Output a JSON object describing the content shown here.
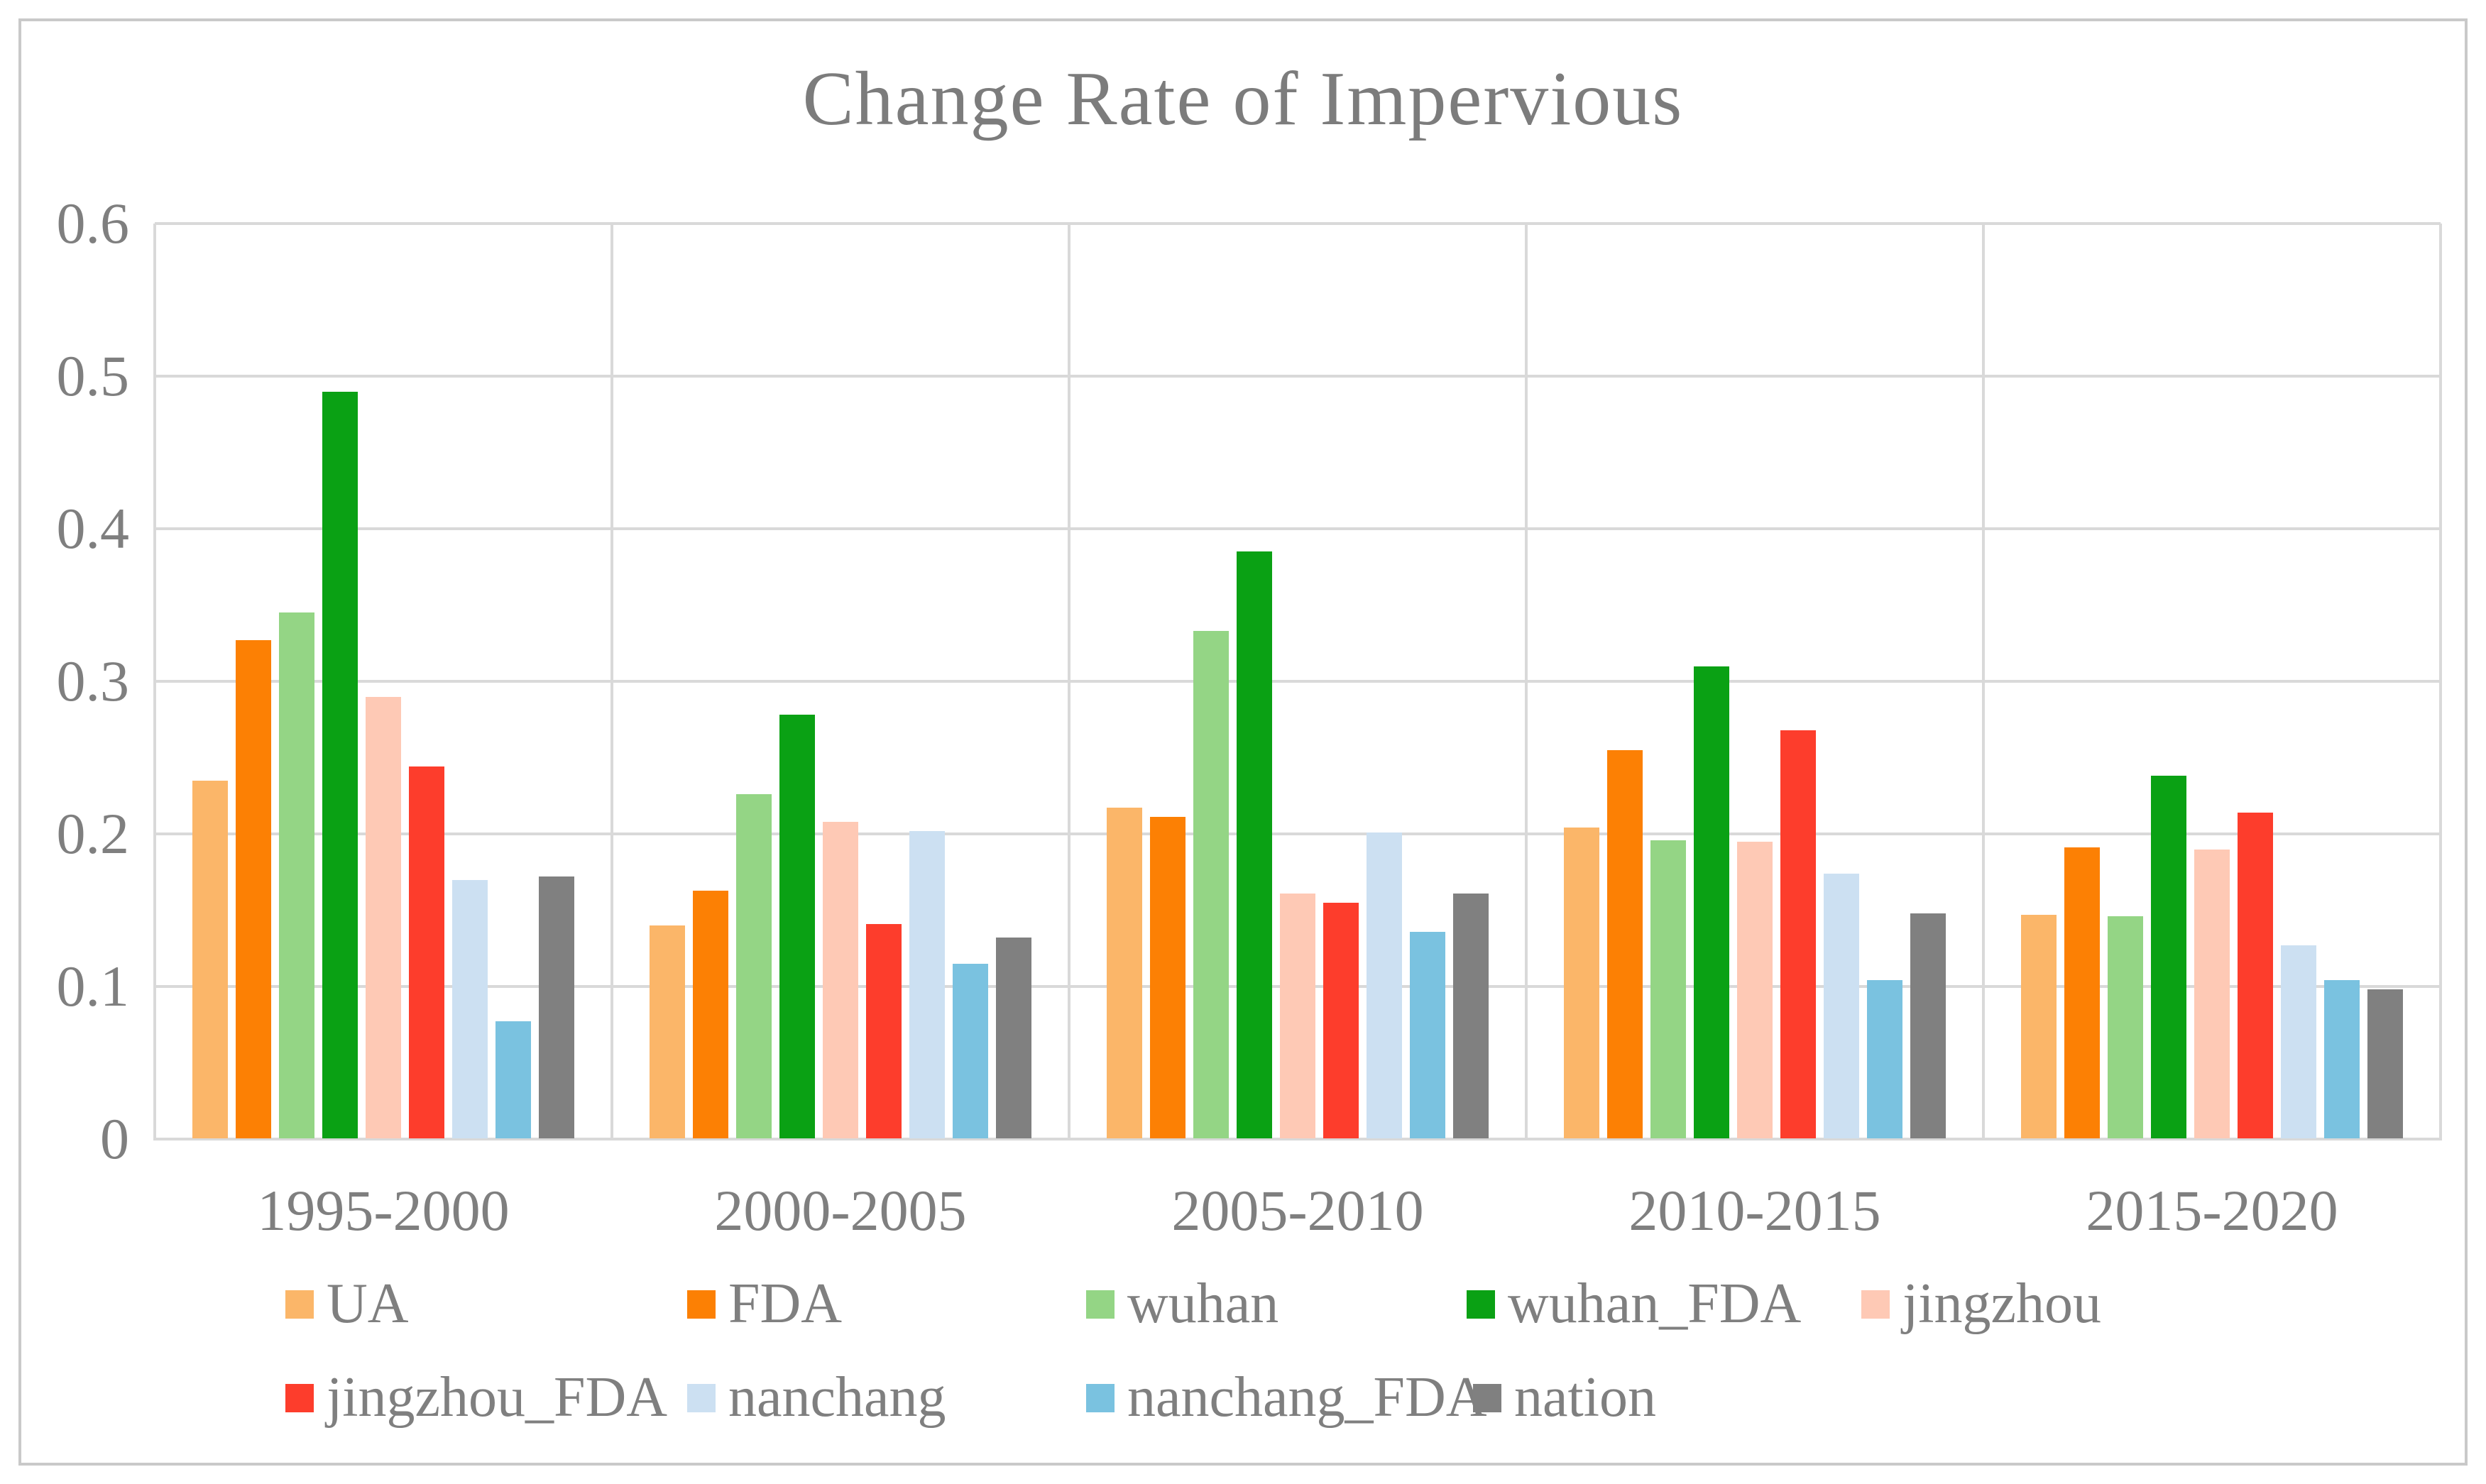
{
  "chart_data": {
    "type": "bar",
    "title": "Change Rate of Impervious",
    "xlabel": "",
    "ylabel": "",
    "ylim": [
      0,
      0.6
    ],
    "ytick_step": 0.1,
    "yticks": [
      "0",
      "0.1",
      "0.2",
      "0.3",
      "0.4",
      "0.5",
      "0.6"
    ],
    "grid": "horizontal gridlines each 0.1 plus vertical category separators",
    "legend_position": "bottom, two rows",
    "background_color": "#ffffff",
    "gridline_color": "#d9d9d9",
    "text_color": "#7f7f7f",
    "categories": [
      "1995-2000",
      "2000-2005",
      "2005-2010",
      "2010-2015",
      "2015-2020"
    ],
    "series": [
      {
        "name": "UA",
        "color": "#fbb669",
        "values": [
          0.235,
          0.14,
          0.217,
          0.204,
          0.147
        ]
      },
      {
        "name": "FDA",
        "color": "#fc8004",
        "values": [
          0.327,
          0.163,
          0.211,
          0.255,
          0.191
        ]
      },
      {
        "name": "wuhan",
        "color": "#94d585",
        "values": [
          0.345,
          0.226,
          0.333,
          0.196,
          0.146
        ]
      },
      {
        "name": "wuhan_FDA",
        "color": "#0aa114",
        "values": [
          0.49,
          0.278,
          0.385,
          0.31,
          0.238
        ]
      },
      {
        "name": "jingzhou",
        "color": "#fec9b5",
        "values": [
          0.29,
          0.208,
          0.161,
          0.195,
          0.19
        ]
      },
      {
        "name": "jingzhou_FDA",
        "color": "#fd3d2c",
        "values": [
          0.244,
          0.141,
          0.155,
          0.268,
          0.214
        ]
      },
      {
        "name": "nanchang",
        "color": "#cce0f2",
        "values": [
          0.17,
          0.202,
          0.201,
          0.174,
          0.127
        ]
      },
      {
        "name": "nanchang_FDA",
        "color": "#7ac2e0",
        "values": [
          0.077,
          0.115,
          0.136,
          0.104,
          0.104
        ]
      },
      {
        "name": "nation",
        "color": "#808080",
        "values": [
          0.172,
          0.132,
          0.161,
          0.148,
          0.098
        ]
      }
    ],
    "legend_rows": [
      [
        "UA",
        "FDA",
        "wuhan",
        "wuhan_FDA",
        "jingzhou"
      ],
      [
        "jingzhou_FDA",
        "nanchang",
        "nanchang_FDA",
        "nation"
      ]
    ]
  }
}
